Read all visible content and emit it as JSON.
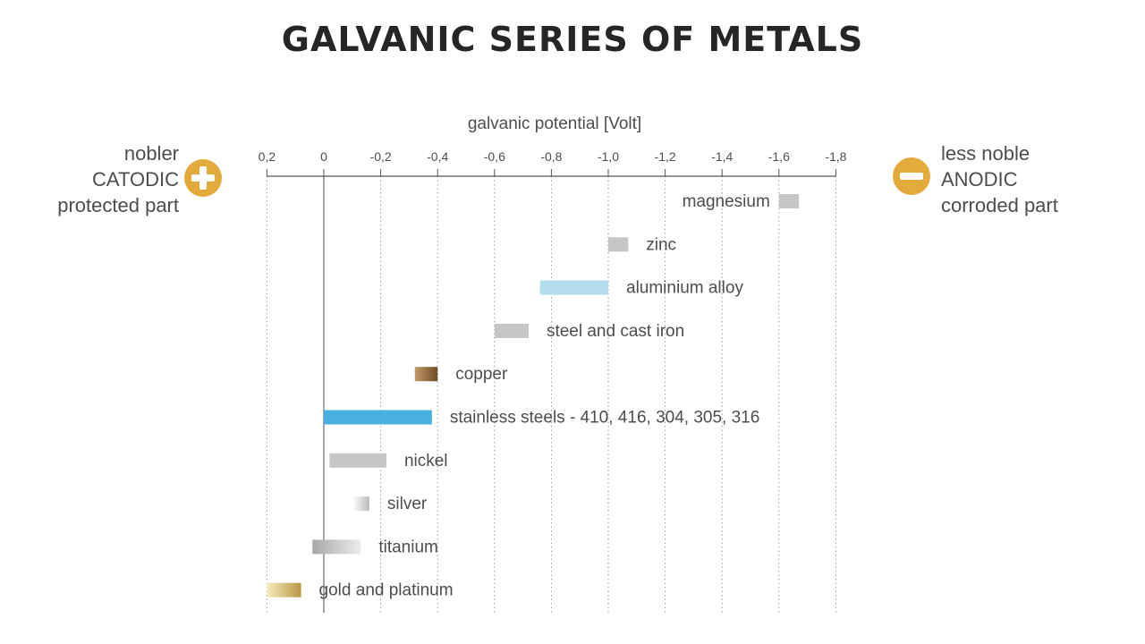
{
  "title": "GALVANIC SERIES OF METALS",
  "left_labels": [
    "nobler",
    "CATODIC",
    "protected part"
  ],
  "right_labels": [
    "less noble",
    "ANODIC",
    "corroded part"
  ],
  "icons": {
    "left": "plus-icon",
    "right": "minus-icon"
  },
  "colors": {
    "accent": "#e3ab3c",
    "gray": "#c6c6c6",
    "light_blue": "#b3dcec",
    "blue": "#47b0df",
    "copper": "#a77a48",
    "gold": "#e8d07a"
  },
  "chart_data": {
    "type": "bar",
    "subtype": "floating-horizontal-range",
    "xlabel": "galvanic potential [Volt]",
    "x_ticks": [
      0.2,
      0,
      -0.2,
      -0.4,
      -0.6,
      -0.8,
      -1.0,
      -1.2,
      -1.4,
      -1.6,
      -1.8
    ],
    "x_tick_labels": [
      "0,2",
      "0",
      "-0,2",
      "-0,4",
      "-0,6",
      "-0,8",
      "-1,0",
      "-1,2",
      "-1,4",
      "-1,6",
      "-1,8"
    ],
    "xlim": [
      0.2,
      -1.8
    ],
    "grid": "vertical dotted",
    "series": [
      {
        "label": "magnesium",
        "from": -1.6,
        "to": -1.67,
        "color": "#c6c6c6",
        "label_side": "left"
      },
      {
        "label": "zinc",
        "from": -1.0,
        "to": -1.07,
        "color": "#c6c6c6",
        "label_side": "right"
      },
      {
        "label": "aluminium alloy",
        "from": -0.76,
        "to": -1.0,
        "color": "#b3dcec",
        "label_side": "right"
      },
      {
        "label": "steel and cast iron",
        "from": -0.6,
        "to": -0.72,
        "color": "#c6c6c6",
        "label_side": "right"
      },
      {
        "label": "copper",
        "from": -0.32,
        "to": -0.4,
        "color": "#a77a48",
        "gradient": true,
        "label_side": "right"
      },
      {
        "label": "stainless steels - 410, 416, 304, 305, 316",
        "from": 0.0,
        "to": -0.38,
        "color": "#47b0df",
        "label_side": "right"
      },
      {
        "label": "nickel",
        "from": -0.02,
        "to": -0.22,
        "color": "#c6c6c6",
        "label_side": "right"
      },
      {
        "label": "silver",
        "from": -0.1,
        "to": -0.16,
        "color": "#b8b8b8",
        "gradient": true,
        "label_side": "right"
      },
      {
        "label": "titanium",
        "from": 0.04,
        "to": -0.13,
        "color": "#a8a8a8",
        "gradient": true,
        "label_side": "right"
      },
      {
        "label": "gold and platinum",
        "from": 0.2,
        "to": 0.08,
        "color": "#e8d07a",
        "gradient": true,
        "label_side": "right"
      }
    ]
  }
}
